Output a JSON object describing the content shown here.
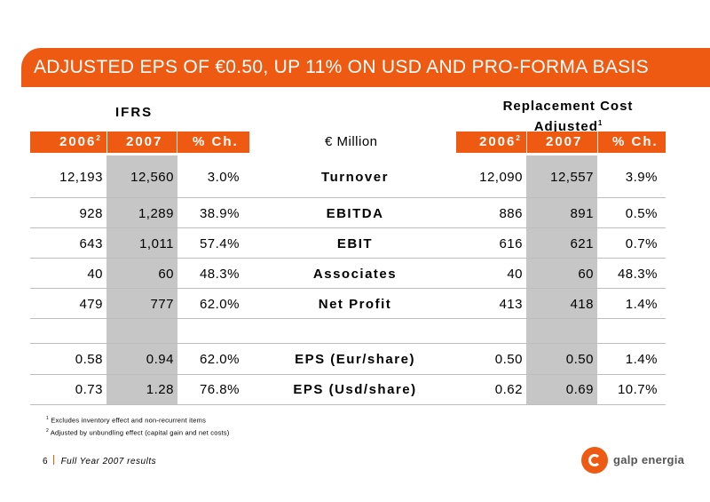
{
  "banner": {
    "title": "ADJUSTED EPS OF €0.50, UP 11% ON USD AND PRO-FORMA BASIS"
  },
  "groups": {
    "left": "IFRS",
    "right_line1": "Replacement Cost",
    "right_line2": "Adjusted",
    "right_sup": "1"
  },
  "header": {
    "unit": "€ Million",
    "left": {
      "y2006": "2006",
      "y2006_sup": "2",
      "y2007": "2007",
      "pct": "% Ch."
    },
    "right": {
      "y2006": "2006",
      "y2006_sup": "2",
      "y2007": "2007",
      "pct": "% Ch."
    }
  },
  "rows": [
    {
      "label": "Turnover",
      "ifrs": [
        "12,193",
        "12,560",
        "3.0%"
      ],
      "rca": [
        "12,090",
        "12,557",
        "3.9%"
      ]
    },
    {
      "label": "EBITDA",
      "ifrs": [
        "928",
        "1,289",
        "38.9%"
      ],
      "rca": [
        "886",
        "891",
        "0.5%"
      ]
    },
    {
      "label": "EBIT",
      "ifrs": [
        "643",
        "1,011",
        "57.4%"
      ],
      "rca": [
        "616",
        "621",
        "0.7%"
      ]
    },
    {
      "label": "Associates",
      "ifrs": [
        "40",
        "60",
        "48.3%"
      ],
      "rca": [
        "40",
        "60",
        "48.3%"
      ]
    },
    {
      "label": "Net Profit",
      "ifrs": [
        "479",
        "777",
        "62.0%"
      ],
      "rca": [
        "413",
        "418",
        "1.4%"
      ]
    },
    {
      "label": "EPS (Eur/share)",
      "ifrs": [
        "0.58",
        "0.94",
        "62.0%"
      ],
      "rca": [
        "0.50",
        "0.50",
        "1.4%"
      ]
    },
    {
      "label": "EPS (Usd/share)",
      "ifrs": [
        "0.73",
        "1.28",
        "76.8%"
      ],
      "rca": [
        "0.62",
        "0.69",
        "10.7%"
      ]
    }
  ],
  "footnotes": [
    {
      "mark": "1",
      "text": "Excludes inventory effect and non-recurrent items"
    },
    {
      "mark": "2",
      "text": "Adjusted by unbundling effect (capital gain and net costs)"
    }
  ],
  "footer": {
    "page": "6",
    "title": "Full Year 2007 results"
  },
  "logo": {
    "text": "galp energia",
    "icon": "galp-logo-icon"
  },
  "colors": {
    "accent": "#ef5a12",
    "shade": "#c6c6c6"
  }
}
